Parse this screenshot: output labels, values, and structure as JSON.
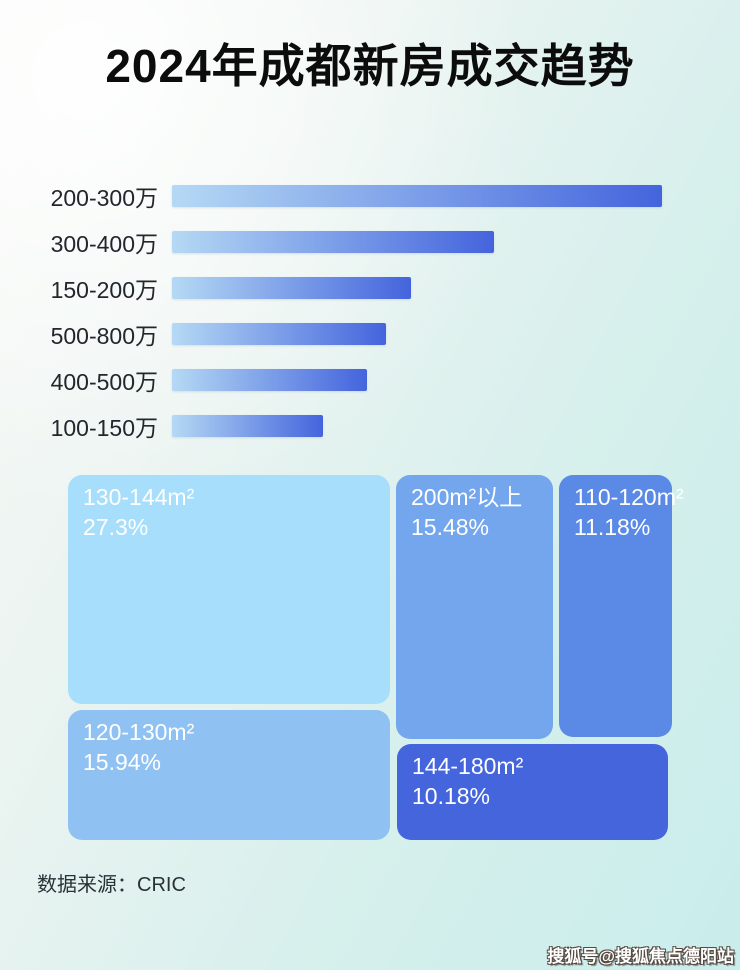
{
  "page": {
    "title": "2024年成都新房成交趋势",
    "source_note": "数据来源：CRIC",
    "watermark": "搜狐号@搜狐焦点德阳站"
  },
  "colors": {
    "bar_gradient_start": "#b5d9f4",
    "bar_gradient_end": "#4464dd",
    "background_light": "#f8f9f6",
    "background_cyan": "#c9edec",
    "title_color": "#0c0c0c"
  },
  "chart_data": [
    {
      "type": "bar",
      "orientation": "horizontal",
      "title": "2024年成都新房成交趋势",
      "categories": [
        "200-300万",
        "300-400万",
        "150-200万",
        "500-800万",
        "400-500万",
        "100-150万"
      ],
      "values_relative_pct": [
        100,
        65.7,
        48.7,
        43.6,
        39.8,
        30.9
      ],
      "value_labels_shown": false,
      "xlabel": "",
      "ylabel": "",
      "legend": "none",
      "grid": false,
      "bar_color_gradient": [
        "#b5d9f4",
        "#4464dd"
      ]
    },
    {
      "type": "treemap",
      "tiles": [
        {
          "label": "130-144m²",
          "value_pct": 27.3,
          "display": "27.3%",
          "color": "#a7defb"
        },
        {
          "label": "200m²以上",
          "value_pct": 15.48,
          "display": "15.48%",
          "color": "#73a6ec"
        },
        {
          "label": "110-120m²",
          "value_pct": 11.18,
          "display": "11.18%",
          "color": "#5b89e6"
        },
        {
          "label": "120-130m²",
          "value_pct": 15.94,
          "display": "15.94%",
          "color": "#8fc2f2"
        },
        {
          "label": "144-180m²",
          "value_pct": 10.18,
          "display": "10.18%",
          "color": "#4565dc"
        }
      ]
    }
  ]
}
